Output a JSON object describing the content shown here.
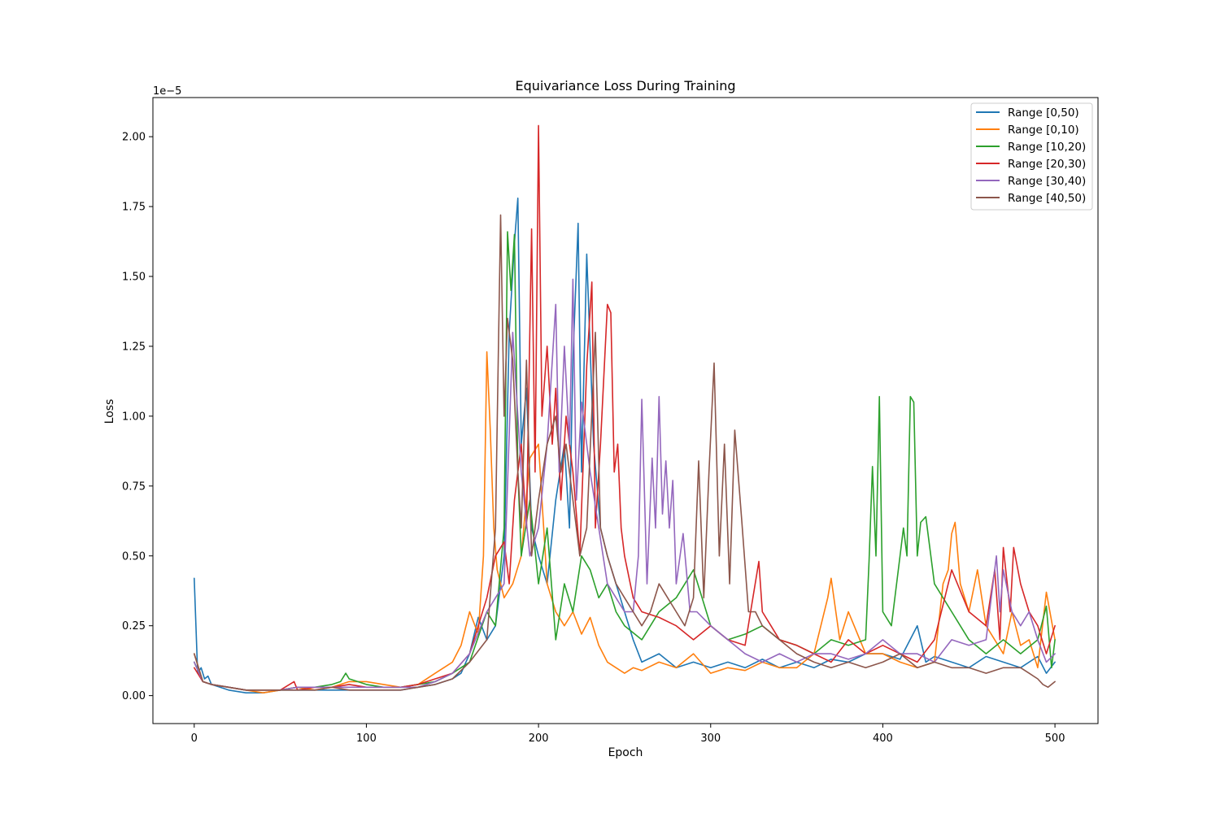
{
  "chart_data": {
    "type": "line",
    "title": "Equivariance Loss During Training",
    "xlabel": "Epoch",
    "ylabel": "Loss",
    "offset_label": "1e−5",
    "xlim": [
      -24,
      525
    ],
    "ylim": [
      -0.1,
      2.14
    ],
    "xticks": [
      0,
      100,
      200,
      300,
      400,
      500
    ],
    "xtick_labels": [
      "0",
      "100",
      "200",
      "300",
      "400",
      "500"
    ],
    "yticks": [
      0.0,
      0.25,
      0.5,
      0.75,
      1.0,
      1.25,
      1.5,
      1.75,
      2.0
    ],
    "ytick_labels": [
      "0.00",
      "0.25",
      "0.50",
      "0.75",
      "1.00",
      "1.25",
      "1.50",
      "1.75",
      "2.00"
    ],
    "grid": false,
    "legend_position": "top-right",
    "series": [
      {
        "name": "Range [0,50)",
        "color": "#1f77b4",
        "x": [
          0,
          2,
          4,
          6,
          8,
          10,
          15,
          20,
          30,
          40,
          50,
          60,
          70,
          80,
          90,
          100,
          110,
          120,
          130,
          140,
          150,
          155,
          160,
          165,
          170,
          175,
          180,
          183,
          186,
          188,
          190,
          193,
          196,
          200,
          205,
          210,
          215,
          218,
          220,
          223,
          225,
          228,
          232,
          236,
          240,
          245,
          250,
          255,
          260,
          270,
          280,
          290,
          300,
          310,
          320,
          330,
          340,
          350,
          360,
          370,
          380,
          390,
          400,
          410,
          420,
          425,
          430,
          440,
          450,
          460,
          470,
          480,
          490,
          495,
          500
        ],
        "values": [
          0.42,
          0.08,
          0.1,
          0.06,
          0.07,
          0.04,
          0.03,
          0.02,
          0.01,
          0.01,
          0.02,
          0.02,
          0.02,
          0.02,
          0.02,
          0.02,
          0.02,
          0.02,
          0.03,
          0.04,
          0.06,
          0.08,
          0.15,
          0.28,
          0.2,
          0.25,
          0.5,
          1.3,
          1.62,
          1.78,
          0.9,
          1.1,
          0.6,
          0.5,
          0.4,
          0.7,
          0.9,
          0.6,
          1.2,
          1.69,
          0.8,
          1.58,
          0.9,
          0.6,
          0.5,
          0.4,
          0.3,
          0.2,
          0.12,
          0.15,
          0.1,
          0.12,
          0.1,
          0.12,
          0.1,
          0.13,
          0.1,
          0.12,
          0.1,
          0.13,
          0.12,
          0.15,
          0.15,
          0.13,
          0.25,
          0.12,
          0.14,
          0.12,
          0.1,
          0.14,
          0.12,
          0.1,
          0.14,
          0.08,
          0.12
        ]
      },
      {
        "name": "Range [0,10)",
        "color": "#ff7f0e",
        "x": [
          0,
          5,
          10,
          20,
          30,
          40,
          50,
          60,
          70,
          80,
          90,
          100,
          110,
          120,
          130,
          140,
          150,
          155,
          160,
          165,
          168,
          170,
          172,
          174,
          176,
          180,
          185,
          190,
          195,
          200,
          205,
          210,
          215,
          220,
          225,
          230,
          235,
          240,
          245,
          250,
          255,
          260,
          270,
          280,
          290,
          300,
          310,
          320,
          330,
          340,
          350,
          360,
          368,
          370,
          375,
          380,
          390,
          400,
          410,
          420,
          430,
          435,
          438,
          440,
          442,
          445,
          450,
          455,
          460,
          465,
          470,
          475,
          480,
          485,
          490,
          495,
          500
        ],
        "values": [
          0.15,
          0.05,
          0.04,
          0.03,
          0.02,
          0.01,
          0.02,
          0.03,
          0.02,
          0.03,
          0.05,
          0.05,
          0.04,
          0.03,
          0.04,
          0.08,
          0.12,
          0.18,
          0.3,
          0.22,
          0.5,
          1.23,
          0.95,
          0.6,
          0.45,
          0.35,
          0.4,
          0.5,
          0.85,
          0.9,
          0.4,
          0.3,
          0.25,
          0.3,
          0.22,
          0.28,
          0.18,
          0.12,
          0.1,
          0.08,
          0.1,
          0.09,
          0.12,
          0.1,
          0.15,
          0.08,
          0.1,
          0.09,
          0.12,
          0.1,
          0.1,
          0.15,
          0.35,
          0.42,
          0.2,
          0.3,
          0.15,
          0.15,
          0.12,
          0.1,
          0.12,
          0.4,
          0.45,
          0.58,
          0.62,
          0.4,
          0.3,
          0.45,
          0.25,
          0.2,
          0.15,
          0.3,
          0.18,
          0.2,
          0.1,
          0.37,
          0.2
        ]
      },
      {
        "name": "Range [10,20)",
        "color": "#2ca02c",
        "x": [
          0,
          5,
          10,
          20,
          30,
          40,
          50,
          60,
          70,
          80,
          85,
          88,
          90,
          95,
          100,
          110,
          120,
          130,
          140,
          150,
          160,
          170,
          175,
          180,
          182,
          184,
          186,
          188,
          190,
          195,
          200,
          205,
          210,
          215,
          220,
          225,
          230,
          235,
          240,
          245,
          250,
          260,
          270,
          280,
          290,
          300,
          310,
          320,
          330,
          340,
          350,
          360,
          370,
          380,
          390,
          392,
          394,
          396,
          398,
          400,
          405,
          410,
          412,
          414,
          416,
          418,
          420,
          422,
          425,
          430,
          440,
          450,
          460,
          470,
          480,
          490,
          495,
          498,
          500
        ],
        "values": [
          0.12,
          0.05,
          0.04,
          0.03,
          0.02,
          0.02,
          0.02,
          0.03,
          0.03,
          0.04,
          0.05,
          0.08,
          0.06,
          0.05,
          0.04,
          0.03,
          0.03,
          0.04,
          0.05,
          0.08,
          0.12,
          0.3,
          0.25,
          0.6,
          1.66,
          1.45,
          1.65,
          0.8,
          0.5,
          0.7,
          0.4,
          0.6,
          0.2,
          0.4,
          0.3,
          0.5,
          0.45,
          0.35,
          0.4,
          0.3,
          0.25,
          0.2,
          0.3,
          0.35,
          0.45,
          0.25,
          0.2,
          0.22,
          0.25,
          0.2,
          0.18,
          0.15,
          0.2,
          0.18,
          0.2,
          0.48,
          0.82,
          0.5,
          1.07,
          0.3,
          0.25,
          0.5,
          0.6,
          0.5,
          1.07,
          1.05,
          0.5,
          0.62,
          0.64,
          0.4,
          0.3,
          0.2,
          0.15,
          0.2,
          0.15,
          0.2,
          0.32,
          0.1,
          0.2
        ]
      },
      {
        "name": "Range [20,30)",
        "color": "#d62728",
        "x": [
          0,
          5,
          10,
          20,
          30,
          40,
          50,
          58,
          60,
          70,
          80,
          90,
          100,
          110,
          120,
          130,
          140,
          150,
          160,
          170,
          175,
          180,
          183,
          186,
          190,
          193,
          196,
          198,
          200,
          202,
          205,
          208,
          210,
          213,
          216,
          220,
          224,
          228,
          231,
          233,
          236,
          240,
          242,
          244,
          246,
          248,
          250,
          255,
          260,
          270,
          280,
          290,
          300,
          310,
          320,
          328,
          330,
          335,
          340,
          350,
          360,
          370,
          380,
          390,
          400,
          410,
          420,
          430,
          440,
          450,
          460,
          465,
          468,
          470,
          474,
          476,
          480,
          485,
          490,
          495,
          500
        ],
        "values": [
          0.1,
          0.05,
          0.04,
          0.03,
          0.02,
          0.02,
          0.02,
          0.05,
          0.02,
          0.03,
          0.03,
          0.04,
          0.03,
          0.03,
          0.03,
          0.04,
          0.06,
          0.08,
          0.15,
          0.35,
          0.5,
          0.55,
          0.4,
          0.7,
          0.9,
          0.6,
          1.67,
          0.8,
          2.04,
          1.0,
          1.25,
          0.9,
          1.1,
          0.7,
          1.0,
          0.8,
          0.5,
          1.18,
          1.48,
          0.6,
          0.9,
          1.4,
          1.37,
          0.8,
          0.9,
          0.6,
          0.5,
          0.35,
          0.3,
          0.28,
          0.25,
          0.2,
          0.25,
          0.2,
          0.18,
          0.48,
          0.3,
          0.25,
          0.2,
          0.18,
          0.15,
          0.12,
          0.2,
          0.15,
          0.18,
          0.15,
          0.12,
          0.2,
          0.45,
          0.3,
          0.25,
          0.45,
          0.2,
          0.53,
          0.3,
          0.53,
          0.4,
          0.3,
          0.25,
          0.15,
          0.25
        ]
      },
      {
        "name": "Range [30,40)",
        "color": "#9467bd",
        "x": [
          0,
          5,
          10,
          20,
          30,
          40,
          50,
          60,
          70,
          80,
          90,
          100,
          110,
          120,
          130,
          140,
          150,
          160,
          170,
          175,
          180,
          185,
          190,
          195,
          200,
          205,
          210,
          212,
          215,
          218,
          220,
          222,
          225,
          230,
          235,
          240,
          245,
          250,
          255,
          258,
          260,
          263,
          266,
          268,
          270,
          272,
          274,
          276,
          278,
          280,
          284,
          288,
          292,
          300,
          310,
          320,
          330,
          340,
          350,
          360,
          370,
          380,
          390,
          400,
          410,
          420,
          430,
          440,
          450,
          460,
          466,
          468,
          470,
          475,
          480,
          485,
          490,
          495,
          500
        ],
        "values": [
          0.12,
          0.05,
          0.04,
          0.03,
          0.02,
          0.02,
          0.02,
          0.03,
          0.03,
          0.03,
          0.03,
          0.03,
          0.03,
          0.03,
          0.03,
          0.05,
          0.08,
          0.15,
          0.3,
          0.35,
          0.4,
          1.3,
          0.8,
          0.5,
          0.6,
          0.9,
          1.4,
          0.8,
          1.25,
          0.9,
          1.49,
          0.7,
          1.05,
          0.8,
          0.6,
          0.4,
          0.35,
          0.3,
          0.3,
          0.5,
          1.06,
          0.4,
          0.85,
          0.6,
          1.07,
          0.65,
          0.84,
          0.6,
          0.77,
          0.4,
          0.58,
          0.3,
          0.3,
          0.25,
          0.2,
          0.15,
          0.12,
          0.15,
          0.12,
          0.15,
          0.15,
          0.13,
          0.15,
          0.2,
          0.15,
          0.15,
          0.12,
          0.2,
          0.18,
          0.2,
          0.5,
          0.3,
          0.45,
          0.3,
          0.25,
          0.3,
          0.2,
          0.12,
          0.15
        ]
      },
      {
        "name": "Range [40,50)",
        "color": "#8c564b",
        "x": [
          0,
          5,
          10,
          20,
          30,
          40,
          50,
          60,
          70,
          80,
          90,
          100,
          110,
          120,
          130,
          140,
          150,
          160,
          170,
          175,
          178,
          180,
          182,
          185,
          188,
          190,
          193,
          196,
          200,
          205,
          210,
          213,
          216,
          220,
          224,
          228,
          233,
          236,
          240,
          245,
          250,
          255,
          260,
          265,
          270,
          275,
          280,
          285,
          290,
          293,
          296,
          299,
          302,
          305,
          308,
          311,
          314,
          318,
          322,
          326,
          330,
          340,
          350,
          360,
          370,
          380,
          390,
          400,
          410,
          420,
          430,
          440,
          450,
          460,
          470,
          480,
          485,
          490,
          493,
          496,
          500
        ],
        "values": [
          0.15,
          0.05,
          0.04,
          0.03,
          0.02,
          0.02,
          0.02,
          0.02,
          0.02,
          0.03,
          0.02,
          0.02,
          0.02,
          0.02,
          0.03,
          0.04,
          0.06,
          0.12,
          0.2,
          0.6,
          1.72,
          1.0,
          1.35,
          1.2,
          0.8,
          0.6,
          1.2,
          0.5,
          0.7,
          0.9,
          1.0,
          0.8,
          0.9,
          0.7,
          0.5,
          0.6,
          1.3,
          0.6,
          0.5,
          0.4,
          0.35,
          0.3,
          0.25,
          0.3,
          0.4,
          0.35,
          0.3,
          0.25,
          0.35,
          0.84,
          0.35,
          0.8,
          1.19,
          0.5,
          0.9,
          0.4,
          0.95,
          0.63,
          0.3,
          0.3,
          0.25,
          0.2,
          0.15,
          0.12,
          0.1,
          0.12,
          0.1,
          0.12,
          0.15,
          0.1,
          0.12,
          0.1,
          0.1,
          0.08,
          0.1,
          0.1,
          0.08,
          0.06,
          0.04,
          0.03,
          0.05
        ]
      }
    ]
  }
}
